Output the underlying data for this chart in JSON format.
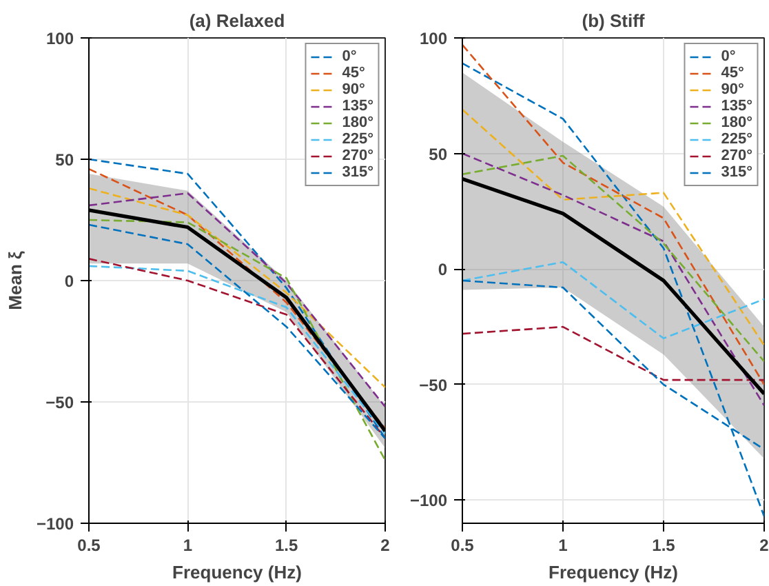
{
  "chart_data": [
    {
      "type": "line",
      "title": "(a) Relaxed",
      "xlabel": "Frequency (Hz)",
      "ylabel": "Mean ξ",
      "x": [
        0.5,
        1,
        1.5,
        2
      ],
      "xlim": [
        0.5,
        2
      ],
      "xticks": [
        0.5,
        1,
        1.5,
        2
      ],
      "ylim": [
        -100,
        100
      ],
      "yticks": [
        -100,
        -50,
        0,
        50,
        100
      ],
      "grid": true,
      "legend": "top right",
      "series": [
        {
          "name": "0°",
          "color": "#0072bd",
          "line_style": "dashed",
          "values": [
            50,
            44,
            -3,
            -65
          ]
        },
        {
          "name": "45°",
          "color": "#d95319",
          "line_style": "dashed",
          "values": [
            46,
            27,
            -9,
            -61
          ]
        },
        {
          "name": "90°",
          "color": "#edb120",
          "line_style": "dashed",
          "values": [
            38,
            27,
            -5,
            -44
          ]
        },
        {
          "name": "135°",
          "color": "#7e2f8e",
          "line_style": "dashed",
          "values": [
            31,
            36,
            -1,
            -52
          ]
        },
        {
          "name": "180°",
          "color": "#77ac30",
          "line_style": "dashed",
          "values": [
            25,
            24,
            1,
            -74
          ]
        },
        {
          "name": "225°",
          "color": "#4dbeee",
          "line_style": "dashed",
          "values": [
            6,
            4,
            -11,
            -63
          ]
        },
        {
          "name": "270°",
          "color": "#a2142f",
          "line_style": "dashed",
          "values": [
            9,
            0,
            -14,
            -65
          ]
        },
        {
          "name": "315°",
          "color": "#0072bd",
          "line_style": "dashed",
          "values": [
            23,
            15,
            -19,
            -65
          ]
        },
        {
          "color": "#000000",
          "line_style": "solid",
          "values": [
            29,
            22,
            -7,
            -62
          ],
          "lower": [
            7,
            7,
            -13,
            -69
          ],
          "upper": [
            44,
            37,
            0,
            -52
          ]
        }
      ]
    },
    {
      "type": "line",
      "title": "(b) Stiff",
      "xlabel": "Frequency (Hz)",
      "x": [
        0.5,
        1,
        1.5,
        2
      ],
      "xlim": [
        0.5,
        2
      ],
      "xticks": [
        0.5,
        1,
        1.5,
        2
      ],
      "ylim": [
        -110,
        100
      ],
      "yticks": [
        -100,
        -50,
        0,
        50,
        100
      ],
      "grid": true,
      "legend": "top right",
      "series": [
        {
          "name": "0°",
          "color": "#0072bd",
          "line_style": "dashed",
          "values": [
            89,
            65,
            9,
            -107
          ]
        },
        {
          "name": "45°",
          "color": "#d95319",
          "line_style": "dashed",
          "values": [
            97,
            46,
            22,
            -50
          ]
        },
        {
          "name": "90°",
          "color": "#edb120",
          "line_style": "dashed",
          "values": [
            69,
            30,
            33,
            -33
          ]
        },
        {
          "name": "135°",
          "color": "#7e2f8e",
          "line_style": "dashed",
          "values": [
            50,
            32,
            12,
            -59
          ]
        },
        {
          "name": "180°",
          "color": "#77ac30",
          "line_style": "dashed",
          "values": [
            41,
            49,
            11,
            -40
          ]
        },
        {
          "name": "225°",
          "color": "#4dbeee",
          "line_style": "dashed",
          "values": [
            -5,
            3,
            -30,
            -13
          ]
        },
        {
          "name": "270°",
          "color": "#a2142f",
          "line_style": "dashed",
          "values": [
            -28,
            -25,
            -48,
            -48
          ]
        },
        {
          "name": "315°",
          "color": "#0072bd",
          "line_style": "dashed",
          "values": [
            -5,
            -8,
            -50,
            -78
          ]
        },
        {
          "color": "#000000",
          "line_style": "solid",
          "values": [
            39,
            24,
            -5,
            -54
          ],
          "lower": [
            -9,
            -8,
            -37,
            -82
          ],
          "upper": [
            85,
            55,
            27,
            -25
          ]
        }
      ]
    }
  ]
}
